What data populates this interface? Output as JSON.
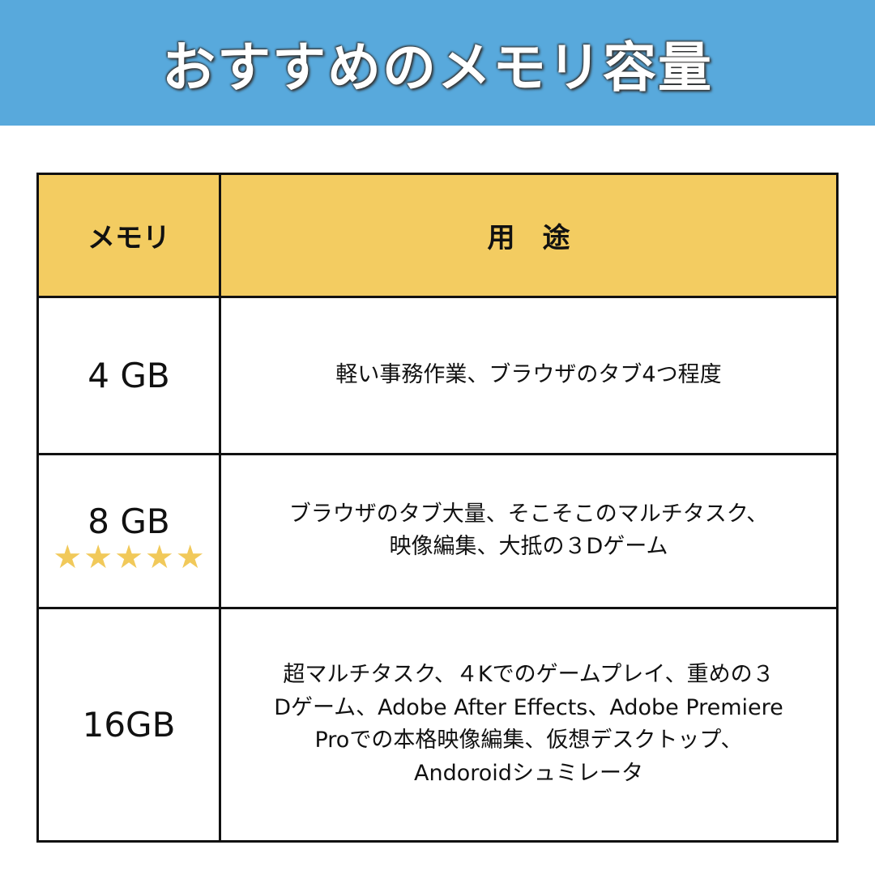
{
  "title": "おすすめのメモリ容量",
  "table": {
    "headers": [
      "メモリ",
      "用　途"
    ],
    "rows": [
      {
        "memory": "4 GB",
        "usage_lines": [
          "軽い事務作業、ブラウザのタブ4つ程度"
        ]
      },
      {
        "memory": "8 GB",
        "rating": 5,
        "rating_max": 5,
        "usage_lines": [
          "ブラウザのタブ大量、そこそこのマルチタスク、",
          "映像編集、大抵の３Dゲーム"
        ]
      },
      {
        "memory": "16GB",
        "usage_lines": [
          "超マルチタスク、４Kでのゲームプレイ、重めの３",
          "Dゲーム、Adobe After Effects、Adobe Premiere",
          "Proでの本格映像編集、仮想デスクトップ、",
          "Andoroidシュミレータ"
        ]
      }
    ]
  },
  "colors": {
    "banner": "#58a9dc",
    "header": "#f3cc61",
    "star": "#f1c95a"
  }
}
